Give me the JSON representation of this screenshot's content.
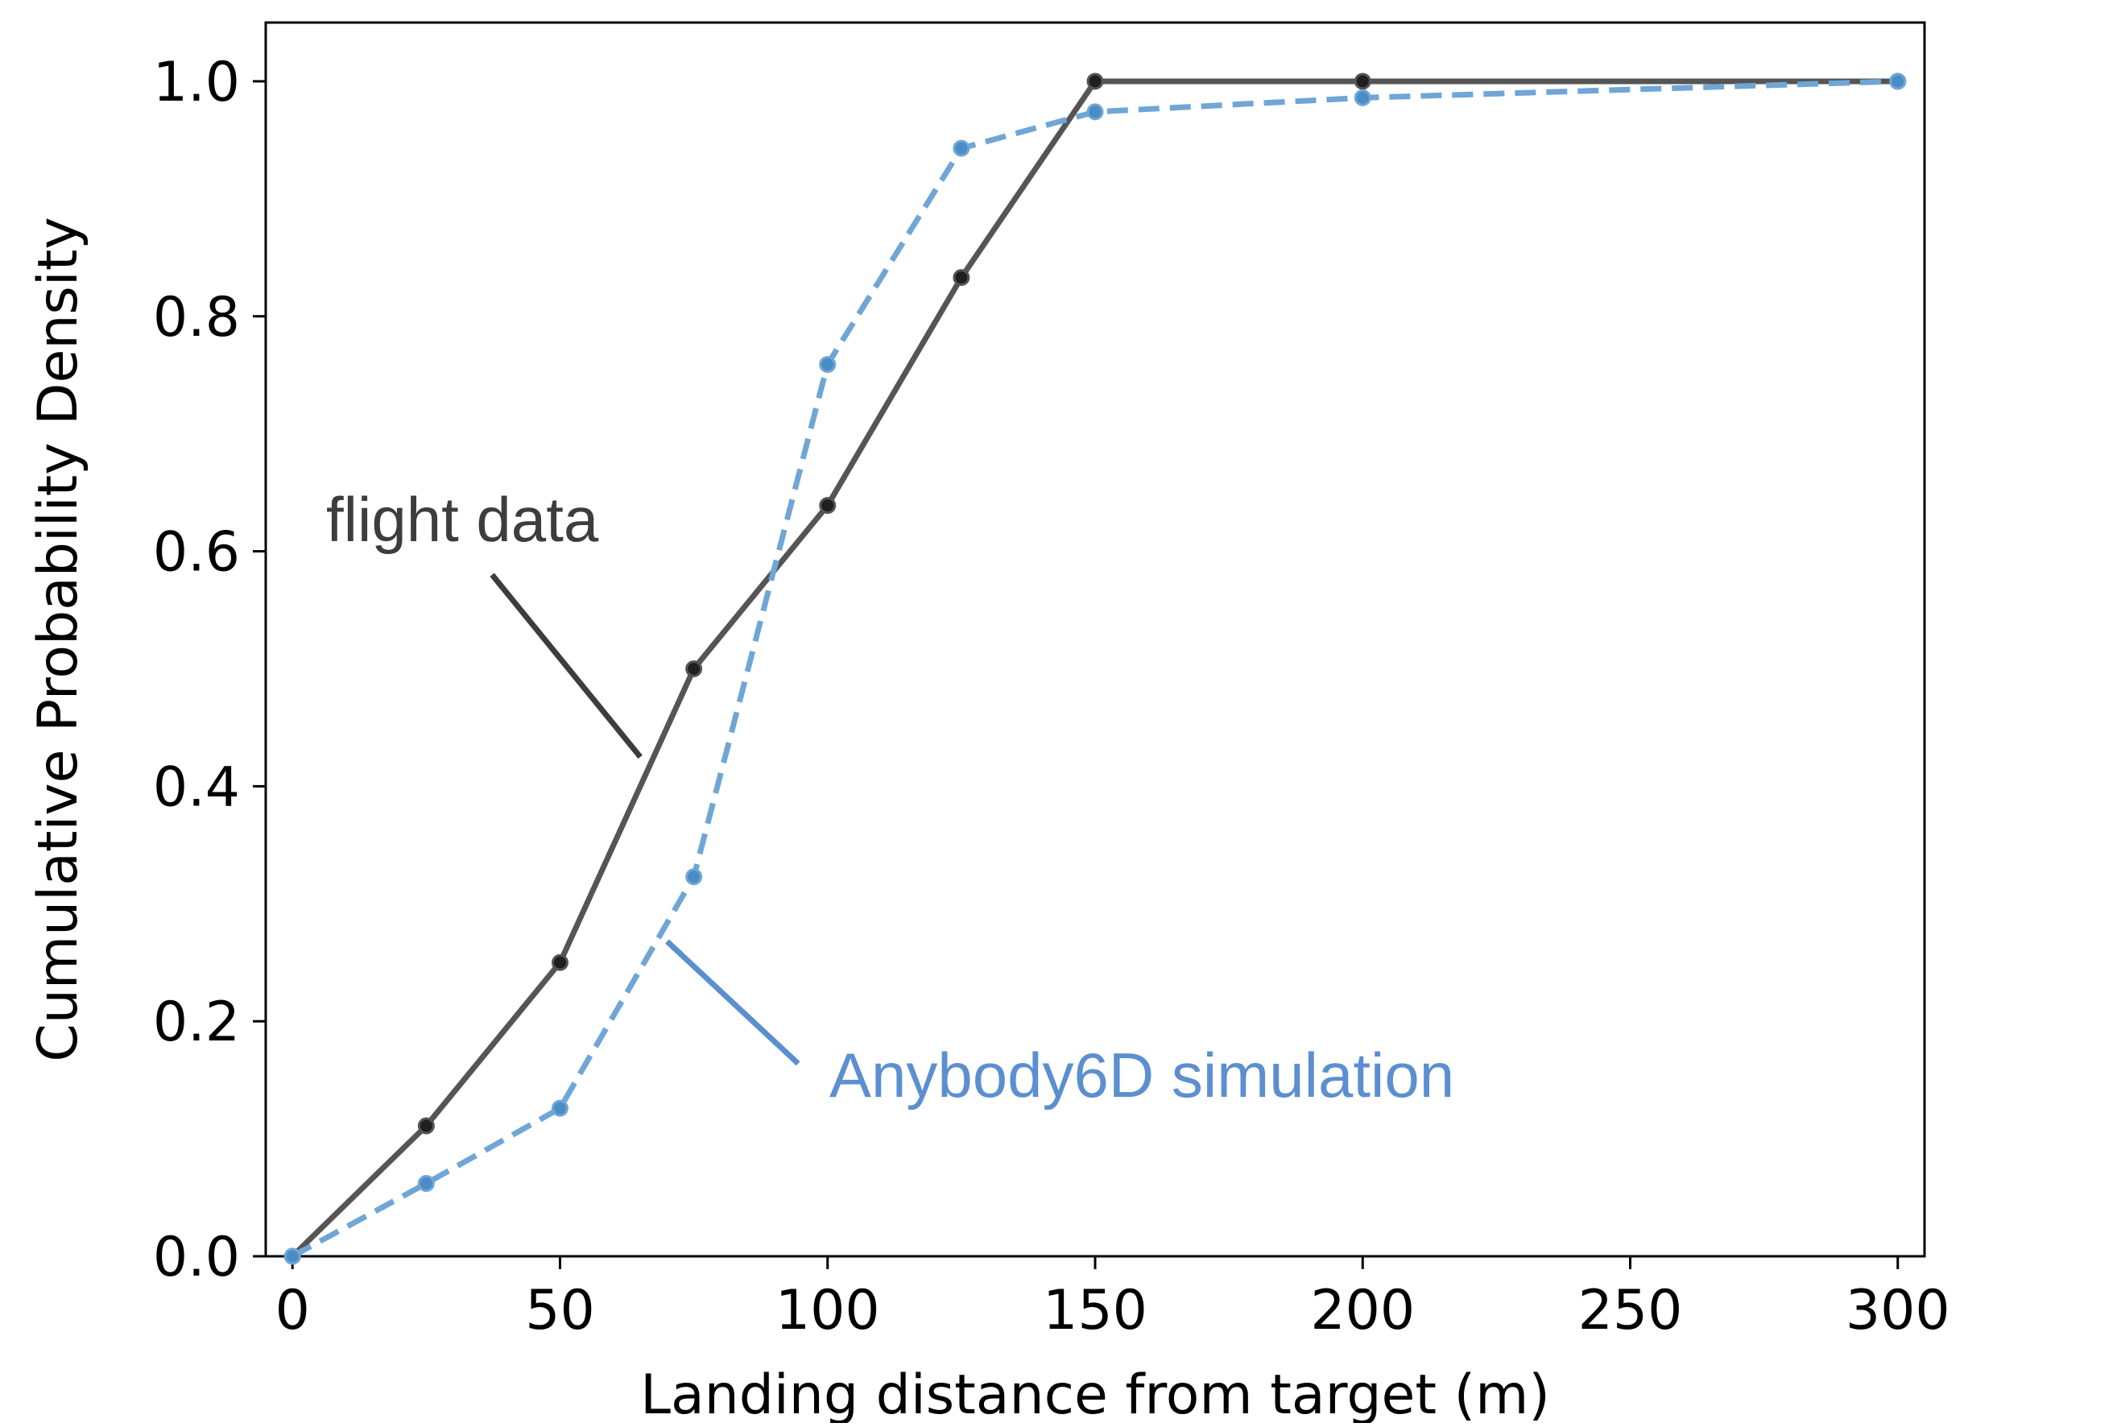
{
  "chart_data": {
    "type": "line",
    "xlabel": "Landing distance from target (m)",
    "ylabel": "Cumulative Probability Density",
    "xlim": [
      -5,
      305
    ],
    "ylim": [
      0,
      1.05
    ],
    "x_ticks": [
      0,
      50,
      100,
      150,
      200,
      250,
      300
    ],
    "y_ticks": [
      0.0,
      0.2,
      0.4,
      0.6,
      0.8,
      1.0
    ],
    "x_tick_labels": [
      "0",
      "50",
      "100",
      "150",
      "200",
      "250",
      "300"
    ],
    "y_tick_labels": [
      "0.0",
      "0.2",
      "0.4",
      "0.6",
      "0.8",
      "1.0"
    ],
    "grid": false,
    "legend": "none",
    "series": [
      {
        "key": "flight",
        "color": "#555555",
        "marker_color": "#1f1f1f",
        "line_style": "solid",
        "points": [
          {
            "x": 0,
            "y": 0.0
          },
          {
            "x": 25,
            "y": 0.111
          },
          {
            "x": 50,
            "y": 0.25
          },
          {
            "x": 75,
            "y": 0.5
          },
          {
            "x": 100,
            "y": 0.639
          },
          {
            "x": 125,
            "y": 0.833
          },
          {
            "x": 150,
            "y": 1.0
          },
          {
            "x": 200,
            "y": 1.0
          },
          {
            "x": 300,
            "y": 1.0
          }
        ]
      },
      {
        "key": "simulation",
        "color": "#6fa6d6",
        "marker_color": "#4a8cc8",
        "line_style": "dashed",
        "points": [
          {
            "x": 0,
            "y": 0.0
          },
          {
            "x": 25,
            "y": 0.062
          },
          {
            "x": 50,
            "y": 0.126
          },
          {
            "x": 75,
            "y": 0.323
          },
          {
            "x": 100,
            "y": 0.759
          },
          {
            "x": 125,
            "y": 0.943
          },
          {
            "x": 150,
            "y": 0.974
          },
          {
            "x": 200,
            "y": 0.986
          },
          {
            "x": 300,
            "y": 1.0
          }
        ]
      }
    ],
    "annotations": [
      {
        "key": "flight",
        "text": "flight data",
        "color": "#3d3d3d",
        "pointer_start": {
          "x": 37.3,
          "y": 0.58
        },
        "pointer_end": {
          "x": 65.0,
          "y": 0.425
        }
      },
      {
        "key": "simulation",
        "text": "Anybody6D simulation",
        "color": "#5b8fd0",
        "pointer_start": {
          "x": 94.5,
          "y": 0.164
        },
        "pointer_end": {
          "x": 70.0,
          "y": 0.268
        }
      }
    ]
  }
}
